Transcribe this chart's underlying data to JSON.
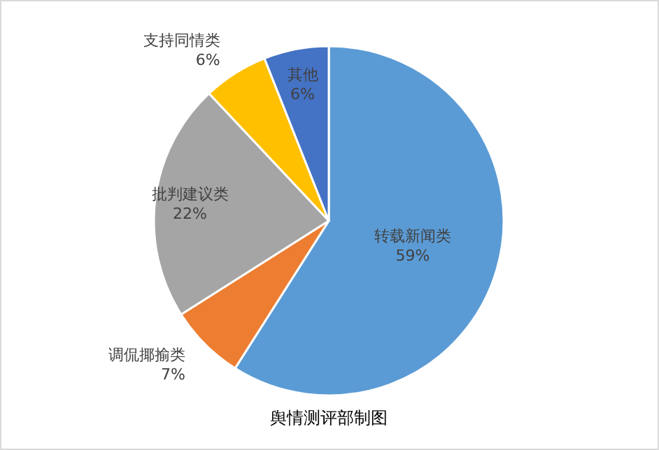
{
  "chart_data": {
    "type": "pie",
    "categories": [
      "转载新闻类",
      "调侃揶揄类",
      "批判建议类",
      "支持同情类",
      "其他"
    ],
    "values": [
      59,
      7,
      22,
      6,
      6
    ],
    "value_labels": [
      "59%",
      "7%",
      "22%",
      "6%",
      "6%"
    ],
    "colors": [
      "#5b9bd5",
      "#ed7d31",
      "#a5a5a5",
      "#ffc000",
      "#4472c4"
    ],
    "annotations": [
      "舆情测评部制图"
    ]
  }
}
